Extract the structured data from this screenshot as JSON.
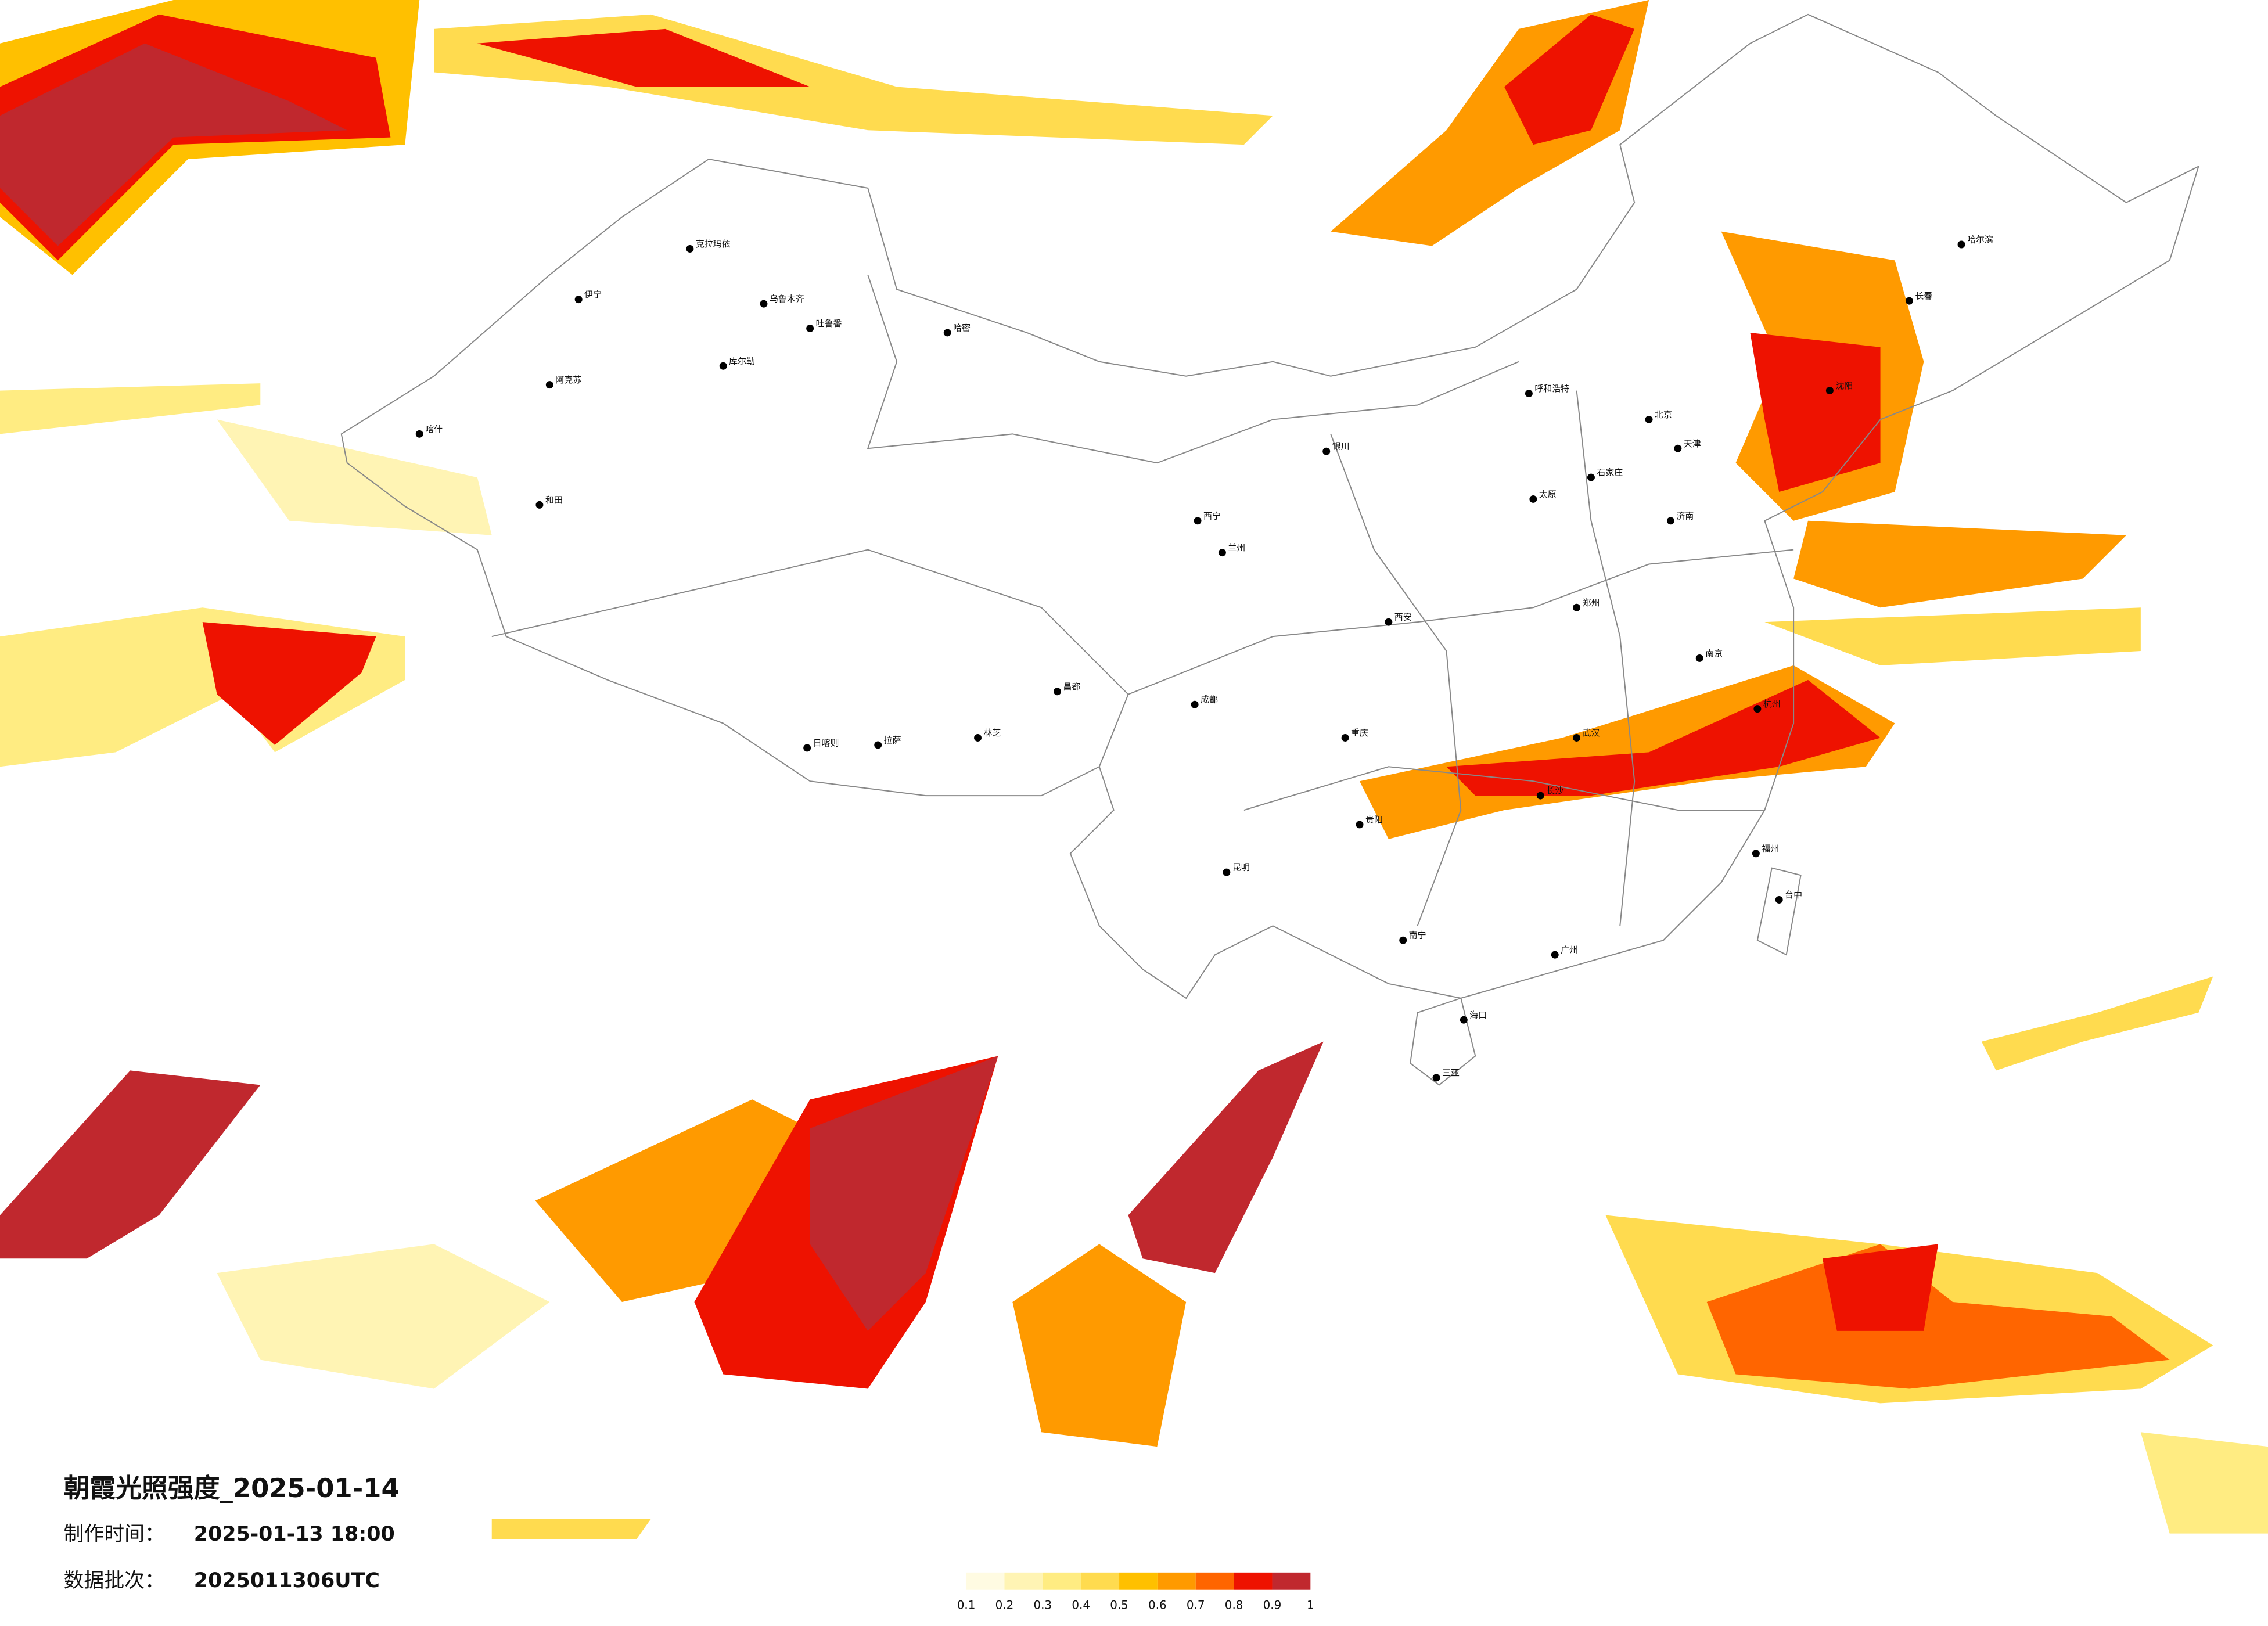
{
  "map": {
    "title": "朝霞光照强度_2025-01-14",
    "made_label": "制作时间：",
    "made_value": "2025-01-13 18:00",
    "batch_label": "数据批次：",
    "batch_value": "2025011306UTC",
    "legend": {
      "ticks": [
        0.1,
        0.2,
        0.3,
        0.4,
        0.5,
        0.6,
        0.7,
        0.8,
        0.9,
        1
      ],
      "colors": [
        "#fffbe2",
        "#fff4b4",
        "#ffec82",
        "#ffdb4f",
        "#ffc000",
        "#ff9a00",
        "#ff6500",
        "#ee1200",
        "#c0282e"
      ]
    },
    "cities": [
      "乌鲁木齐",
      "克拉玛依",
      "伊宁",
      "阿克苏",
      "和田",
      "喀什",
      "库尔勒",
      "哈密",
      "吐鲁番",
      "拉萨",
      "日喀则",
      "林芝",
      "昌都",
      "西宁",
      "兰州",
      "银川",
      "呼和浩特",
      "哈尔滨",
      "长春",
      "沈阳",
      "北京",
      "天津",
      "石家庄",
      "太原",
      "济南",
      "郑州",
      "西安",
      "成都",
      "重庆",
      "武汉",
      "长沙",
      "南京",
      "杭州",
      "福州",
      "台中",
      "贵阳",
      "昆明",
      "南宁",
      "广州",
      "海口",
      "三亚"
    ]
  }
}
